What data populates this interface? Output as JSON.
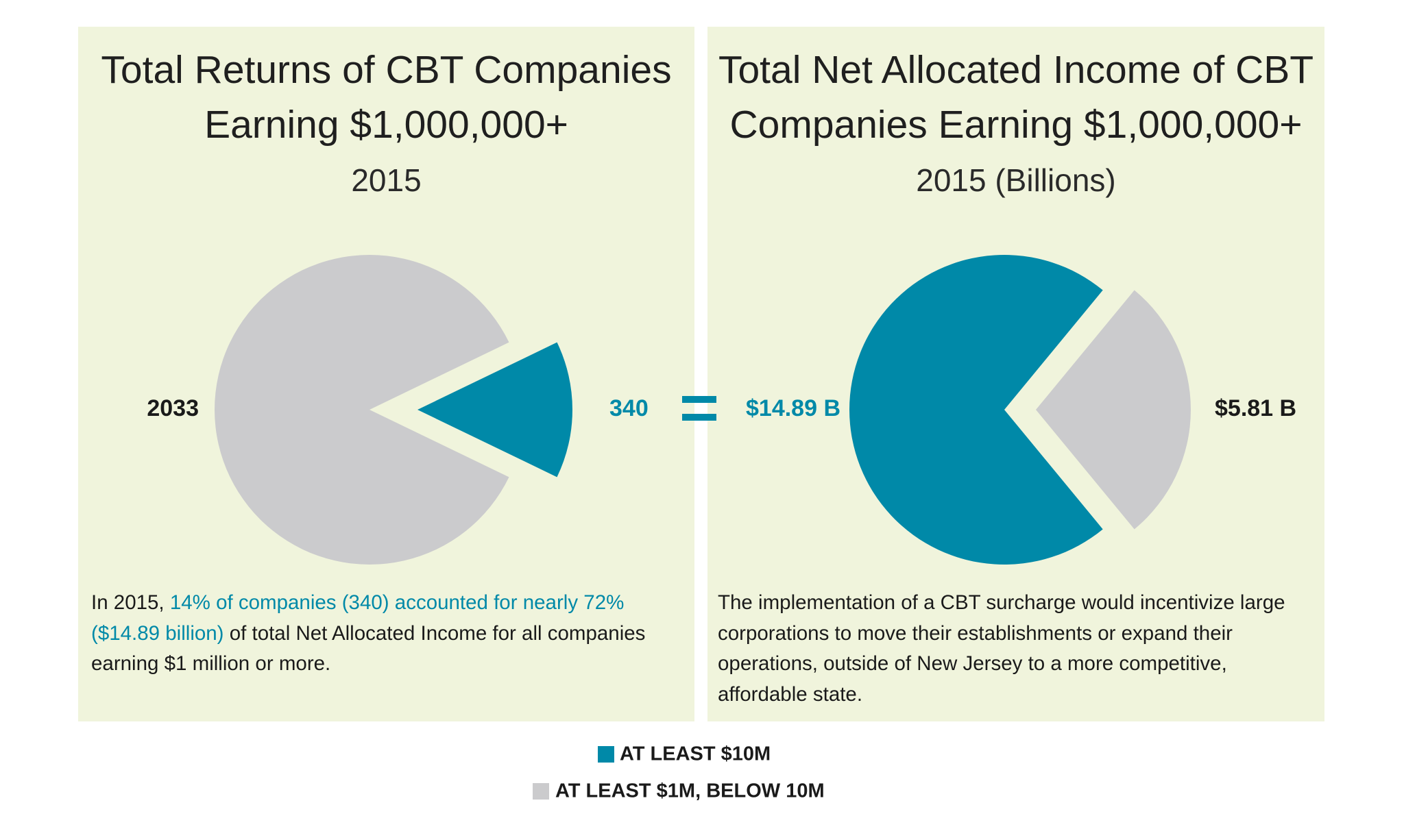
{
  "chart_data": [
    {
      "type": "pie",
      "title": [
        "Total Returns of CBT Companies",
        "Earning $1,000,000+"
      ],
      "subtitle": "2015",
      "values": [
        340,
        2033
      ],
      "note": [
        {
          "text": "In 2015, ",
          "color": "#1a1a1a"
        },
        {
          "text": "14% of companies (340) accounted for nearly 72% ($14.89 billion)",
          "color": "#0089a8"
        },
        {
          "text": " of total Net Allocated Income for all companies earning $1 million or more.",
          "color": "#1a1a1a"
        }
      ]
    },
    {
      "type": "pie",
      "title": [
        "Total Net Allocated Income of CBT",
        "Companies Earning $1,000,000+"
      ],
      "subtitle": "2015 (Billions)",
      "values": [
        14.89,
        5.81
      ],
      "value_labels": [
        "$14.89 B",
        "$5.81 B"
      ],
      "note": [
        {
          "text": "The implementation of a CBT surcharge would incentivize large corporations to move their establishments or expand their operations, outside of New Jersey to a more competitive, affordable state.",
          "color": "#1a1a1a"
        }
      ]
    }
  ],
  "legend": {
    "names": [
      "AT LEAST $10M",
      "AT LEAST $1M, BELOW 10M"
    ],
    "colors": [
      "#0089a8",
      "#cbcbcd"
    ]
  }
}
